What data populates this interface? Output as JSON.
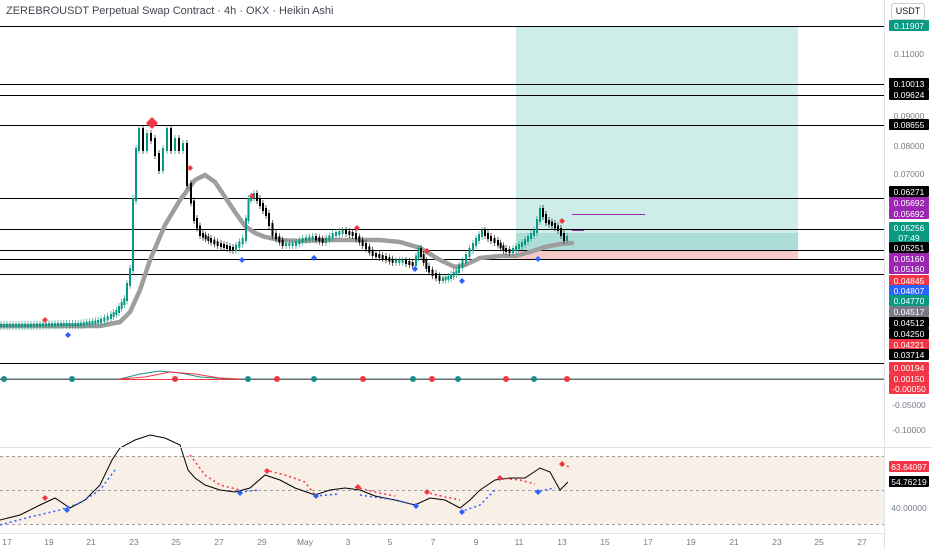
{
  "header": {
    "title": "ZEREBROUSDT Perpetual Swap Contract · 4h · OKX · Heikin Ashi",
    "currency": "USDT"
  },
  "price_axis": {
    "plain_ticks": [
      "0.11000",
      "0.09000",
      "0.08000",
      "0.07000"
    ],
    "tags": [
      {
        "text": "0.11907",
        "bg": "#089981",
        "fg": "#ffffff"
      },
      {
        "text": "0.10013",
        "bg": "#000000",
        "fg": "#ffffff"
      },
      {
        "text": "0.09624",
        "bg": "#000000",
        "fg": "#ffffff"
      },
      {
        "text": "0.08655",
        "bg": "#000000",
        "fg": "#ffffff"
      },
      {
        "text": "0.06271",
        "bg": "#000000",
        "fg": "#ffffff"
      },
      {
        "text": "0.05692",
        "bg": "#9c27b0",
        "fg": "#ffffff"
      },
      {
        "text": "0.05692",
        "bg": "#9c27b0",
        "fg": "#ffffff"
      },
      {
        "text": "0.05256",
        "bg": "#089981",
        "fg": "#ffffff"
      },
      {
        "text": "07:49",
        "bg": "#089981",
        "fg": "#ffffff"
      },
      {
        "text": "0.05251",
        "bg": "#000000",
        "fg": "#ffffff"
      },
      {
        "text": "0.05160",
        "bg": "#9c27b0",
        "fg": "#ffffff"
      },
      {
        "text": "0.05160",
        "bg": "#9c27b0",
        "fg": "#ffffff"
      },
      {
        "text": "0.04845",
        "bg": "#f23645",
        "fg": "#ffffff"
      },
      {
        "text": "0.04807",
        "bg": "#2962ff",
        "fg": "#ffffff"
      },
      {
        "text": "0.04770",
        "bg": "#089981",
        "fg": "#ffffff"
      },
      {
        "text": "0.04517",
        "bg": "#787b86",
        "fg": "#ffffff"
      },
      {
        "text": "0.04512",
        "bg": "#000000",
        "fg": "#ffffff"
      },
      {
        "text": "0.04250",
        "bg": "#000000",
        "fg": "#ffffff"
      },
      {
        "text": "0.04221",
        "bg": "#f23645",
        "fg": "#ffffff"
      },
      {
        "text": "0.03714",
        "bg": "#000000",
        "fg": "#ffffff"
      }
    ]
  },
  "oscillator_axis": {
    "tags": [
      {
        "text": "0.00194",
        "bg": "#f23645",
        "fg": "#ffffff"
      },
      {
        "text": "0.00150",
        "bg": "#f23645",
        "fg": "#ffffff"
      },
      {
        "text": "-0.00050",
        "bg": "#f23645",
        "fg": "#ffffff"
      }
    ],
    "plain_ticks": [
      "-0.05000",
      "-0.10000"
    ]
  },
  "rsi_axis": {
    "tags": [
      {
        "text": "63.64097",
        "bg": "#f23645",
        "fg": "#ffffff"
      },
      {
        "text": "54.76219",
        "bg": "#000000",
        "fg": "#ffffff"
      }
    ],
    "plain_ticks": [
      "40.00000"
    ]
  },
  "time_axis": [
    "17",
    "19",
    "21",
    "23",
    "25",
    "27",
    "29",
    "May",
    "3",
    "5",
    "7",
    "9",
    "11",
    "13",
    "15",
    "17",
    "19",
    "21",
    "23",
    "25",
    "27"
  ],
  "colors": {
    "up": "#089981",
    "down": "#000000",
    "ma": "#8c8c8c",
    "target_zone": "#b2dfdb",
    "stop_zone": "#f7c9c9",
    "sell_marker": "#f23645",
    "buy_marker": "#2962ff",
    "rsi_bg": "#f8efe6"
  }
}
